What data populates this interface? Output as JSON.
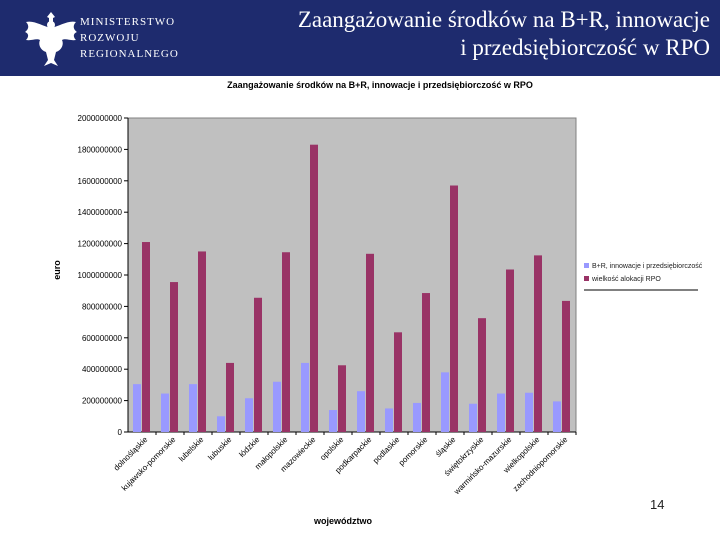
{
  "header": {
    "ministry_lines": [
      "MINISTERSTWO",
      "ROZWOJU",
      "REGIONALNEGO"
    ],
    "title_line1": "Zaangażowanie środków na B+R, innowacje",
    "title_line2": "i przedsiębiorczość w RPO",
    "logo": "polish-eagle-emblem"
  },
  "page_number": "14",
  "colors": {
    "header_bg": "#1e2b6e",
    "plot_bg": "#c0c0c0",
    "series_br": "#9999ff",
    "series_total": "#993366"
  },
  "chart_data": {
    "type": "bar",
    "title": "Zaangażowanie środków na B+R, innowacje i przedsiębiorczość w RPO",
    "xlabel": "województwo",
    "ylabel": "euro",
    "ylim": [
      0,
      2000000000
    ],
    "yticks": [
      "0",
      "200000000",
      "400000000",
      "600000000",
      "800000000",
      "1000000000",
      "1200000000",
      "1400000000",
      "1600000000",
      "1800000000",
      "2000000000"
    ],
    "legend_position": "right",
    "grid": false,
    "categories": [
      "dolnośląskie",
      "kujawsko-pomorskie",
      "lubelskie",
      "lubuskie",
      "łódzkie",
      "małopolskie",
      "mazowieckie",
      "opolskie",
      "podkarpackie",
      "podlaskie",
      "pomorskie",
      "śląskie",
      "świętokrzyskie",
      "warmińsko-mazurskie",
      "wielkopolskie",
      "zachodniopomorskie"
    ],
    "series": [
      {
        "name": "B+R, innowacje i przedsiębiorczość",
        "values": [
          305000000,
          245000000,
          305000000,
          100000000,
          215000000,
          320000000,
          440000000,
          140000000,
          260000000,
          150000000,
          185000000,
          380000000,
          180000000,
          245000000,
          250000000,
          195000000
        ]
      },
      {
        "name": "wielkość alokacji RPO",
        "values": [
          1210000000,
          955000000,
          1150000000,
          440000000,
          855000000,
          1145000000,
          1830000000,
          425000000,
          1135000000,
          635000000,
          885000000,
          1570000000,
          725000000,
          1035000000,
          1125000000,
          835000000
        ]
      }
    ]
  }
}
